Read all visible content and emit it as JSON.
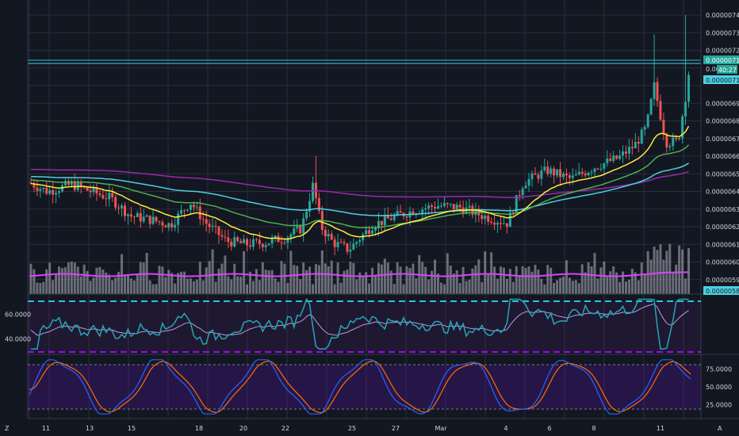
{
  "colors": {
    "background": "#131722",
    "grid": "#2a2e39",
    "candle_up": "#26a69a",
    "candle_down": "#ef5350",
    "volume": "#b2b5be",
    "ema_yellow": "#ffeb3b",
    "ema_green": "#4caf50",
    "ema_cyan": "#4dd0e1",
    "ema_purple": "#9c27b0",
    "volume_ma": "#e040fb",
    "rsi_line": "#26a6b5",
    "rsi_ma": "#b39ddb",
    "rsi_band_upper": "#26c6da",
    "rsi_band_lower": "#aa00ff",
    "stoch_k": "#2962ff",
    "stoch_d": "#ff6d00",
    "stoch_band": "#4a148c"
  },
  "price_axis": {
    "ticks": [
      "0.00000740",
      "0.00000730",
      "0.00000720",
      "0.00000710",
      "0.00000700",
      "0.00000690",
      "0.00000680",
      "0.00000670",
      "0.00000660",
      "0.00000650",
      "0.00000640",
      "0.00000630",
      "0.00000620",
      "0.00000610",
      "0.00000600",
      "0.00000590"
    ],
    "labels": {
      "current_price": "0.00000715",
      "countdown_prefix": "0.0000",
      "countdown": "40:27",
      "line2_price": "0.00000713",
      "volume_tag": "0.00000585"
    }
  },
  "time_axis": {
    "letter_z": "Z",
    "letter_a": "A",
    "ticks": [
      "11",
      "13",
      "15",
      "18",
      "20",
      "22",
      "25",
      "27",
      "Mar",
      "4",
      "6",
      "8",
      "11"
    ]
  },
  "rsi_axis": {
    "ticks": [
      "60.0000",
      "40.0000"
    ]
  },
  "stoch_axis": {
    "ticks": [
      "75.0000",
      "50.0000",
      "25.0000"
    ]
  },
  "chart_data": {
    "type": "candlestick",
    "y_range": [
      5.84e-06,
      7.44e-06
    ],
    "current_price": 7.15e-06,
    "candles_summary": [
      {
        "x": "11",
        "close": 6.4e-06
      },
      {
        "x": "13",
        "close": 6.37e-06
      },
      {
        "x": "15",
        "close": 6.24e-06
      },
      {
        "x": "18",
        "close": 6.34e-06
      },
      {
        "x": "20",
        "close": 6.07e-06
      },
      {
        "x": "22",
        "close": 6.16e-06
      },
      {
        "x": "25",
        "close": 6.03e-06
      },
      {
        "x": "27",
        "close": 6.26e-06
      },
      {
        "x": "Mar",
        "close": 6.32e-06
      },
      {
        "x": "4",
        "close": 6.2e-06
      },
      {
        "x": "6",
        "close": 6.45e-06
      },
      {
        "x": "8",
        "close": 6.56e-06
      },
      {
        "x": "11",
        "close": 6.68e-06
      }
    ],
    "rsi": {
      "ticks": [
        60,
        40
      ],
      "upper_band": 70,
      "lower_band": 30
    },
    "stochastic": {
      "ticks": [
        75,
        50,
        25
      ],
      "upper_band": 80,
      "lower_band": 20
    }
  }
}
